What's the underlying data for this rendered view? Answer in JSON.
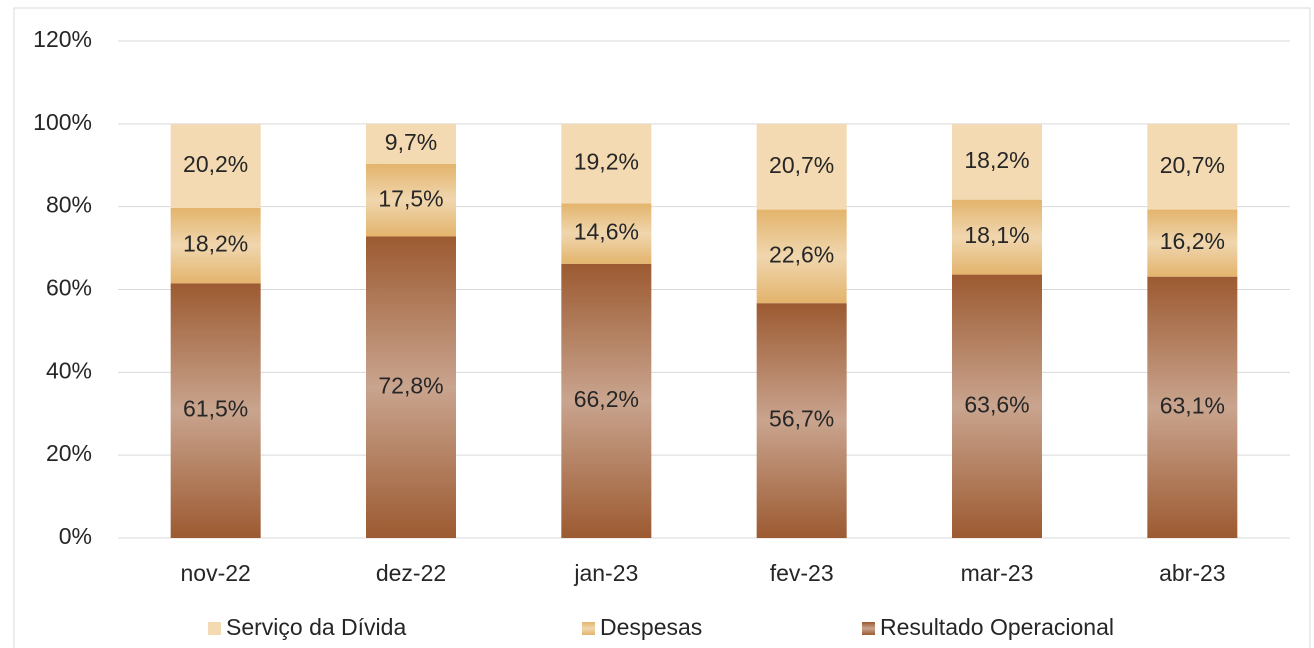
{
  "chart_data": {
    "type": "stacked_bar",
    "categories": [
      "nov-22",
      "dez-22",
      "jan-23",
      "fev-23",
      "mar-23",
      "abr-23"
    ],
    "series": [
      {
        "name": "Resultado Operacional",
        "color": "#9c5a31",
        "values": [
          61.5,
          72.8,
          66.2,
          56.7,
          63.6,
          63.1
        ],
        "value_labels": [
          "61,5%",
          "72,8%",
          "66,2%",
          "56,7%",
          "63,6%",
          "63,1%"
        ]
      },
      {
        "name": "Despesas",
        "color": "#e3b46c",
        "values": [
          18.2,
          17.5,
          14.6,
          22.6,
          18.1,
          16.2
        ],
        "value_labels": [
          "18,2%",
          "17,5%",
          "14,6%",
          "22,6%",
          "18,1%",
          "16,2%"
        ]
      },
      {
        "name": "Serviço da Dívida",
        "color": "#f3dab2",
        "values": [
          20.2,
          9.7,
          19.2,
          20.7,
          18.2,
          20.7
        ],
        "value_labels": [
          "20,2%",
          "9,7%",
          "19,2%",
          "20,7%",
          "18,2%",
          "20,7%"
        ]
      }
    ],
    "ylim": [
      0,
      120
    ],
    "yticks": [
      {
        "value": 0,
        "label": "0%"
      },
      {
        "value": 20,
        "label": "20%"
      },
      {
        "value": 40,
        "label": "40%"
      },
      {
        "value": 60,
        "label": "60%"
      },
      {
        "value": 80,
        "label": "80%"
      },
      {
        "value": 100,
        "label": "100%"
      },
      {
        "value": 120,
        "label": "120%"
      }
    ],
    "grid": true,
    "legend": "bottom"
  }
}
